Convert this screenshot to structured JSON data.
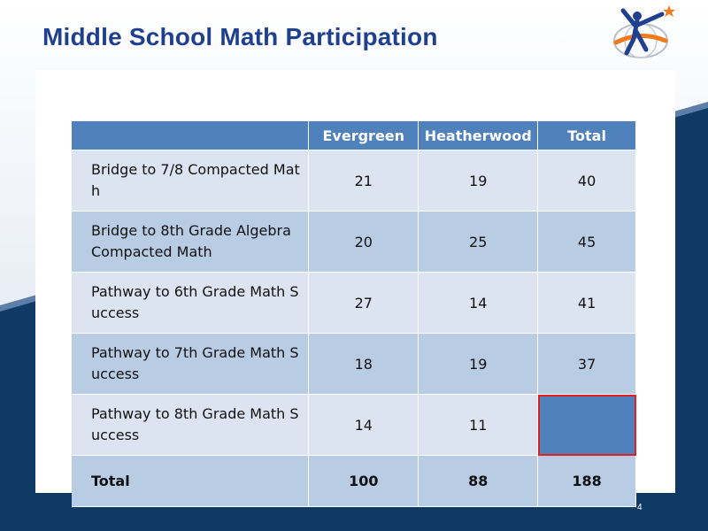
{
  "slide": {
    "title": "Middle School Math Participation",
    "page_number": "4"
  },
  "table": {
    "headers": [
      "",
      "Evergreen",
      "Heatherwood",
      "Total"
    ],
    "rows": [
      {
        "label": "Bridge to 7/8 Compacted Math",
        "evergreen": "21",
        "heatherwood": "19",
        "total": "40"
      },
      {
        "label": "Bridge to 8th Grade Algebra Compacted Math",
        "evergreen": "20",
        "heatherwood": "25",
        "total": "45"
      },
      {
        "label": "Pathway to 6th Grade Math Success",
        "evergreen": "27",
        "heatherwood": "14",
        "total": "41"
      },
      {
        "label": "Pathway to 7th Grade Math Success",
        "evergreen": "18",
        "heatherwood": "19",
        "total": "37"
      },
      {
        "label": "Pathway to 8th Grade Math Success",
        "evergreen": "14",
        "heatherwood": "11",
        "total": ""
      }
    ],
    "total_row": {
      "label": "Total",
      "evergreen": "100",
      "heatherwood": "88",
      "total": "188"
    }
  },
  "colors": {
    "title": "#1f3f8f",
    "header_fill": "#4f81bd",
    "row_light": "#dbe4f0",
    "row_dark": "#b8cce4",
    "navy_background": "#0f3a66",
    "highlight_border": "#e02020"
  },
  "icons": {
    "logo": "person-reaching-star-icon"
  }
}
